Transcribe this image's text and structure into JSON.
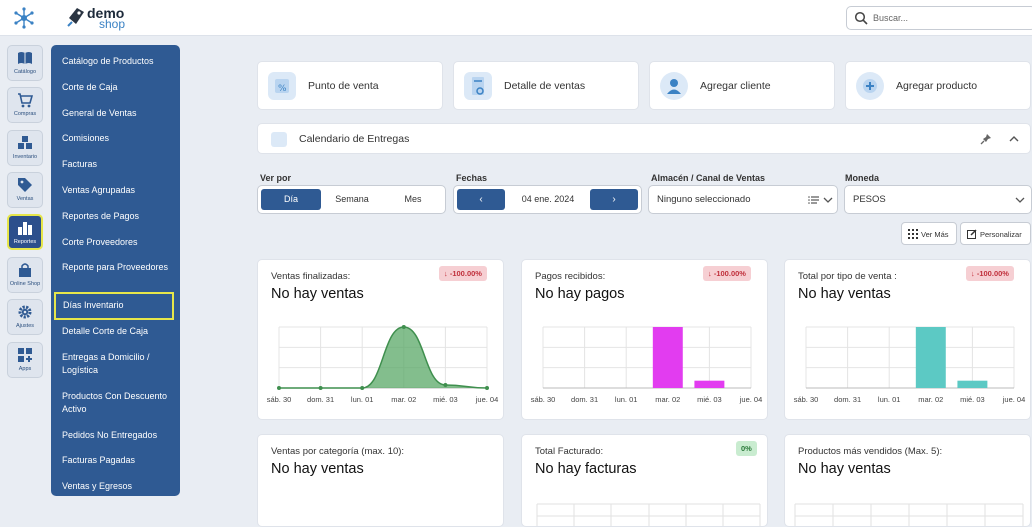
{
  "header": {
    "app_icon": "network-icon",
    "logo_line1": "demo",
    "logo_line2": "shop",
    "search_placeholder": "Buscar..."
  },
  "rail": [
    {
      "label": "Catálogo",
      "icon": "book-icon"
    },
    {
      "label": "Compras",
      "icon": "cart-icon"
    },
    {
      "label": "Inventario",
      "icon": "boxes-icon"
    },
    {
      "label": "Ventas",
      "icon": "tag-icon"
    },
    {
      "label": "Reportes",
      "icon": "bar-chart-icon",
      "active": true
    },
    {
      "label": "Online Shop",
      "icon": "shop-bag-icon"
    },
    {
      "label": "Ajustes",
      "icon": "gear-icon"
    },
    {
      "label": "Apps",
      "icon": "apps-icon"
    }
  ],
  "report_menu": [
    "Catálogo de Productos",
    "Corte de Caja",
    "General de Ventas",
    "Comisiones",
    "Facturas",
    "Ventas Agrupadas",
    "Reportes de Pagos",
    "Corte Proveedores",
    "Reporte para Proveedores",
    "Días Inventario",
    "Detalle Corte de Caja",
    "Entregas a Domicilio / Logística",
    "Productos Con Descuento Activo",
    "Pedidos No Entregados",
    "Facturas Pagadas",
    "Ventas y Egresos"
  ],
  "quick_actions": [
    "Punto de venta",
    "Detalle de ventas",
    "Agregar cliente",
    "Agregar producto"
  ],
  "calendar": {
    "title": "Calendario de Entregas"
  },
  "filters": {
    "ver_por": {
      "label": "Ver por",
      "options": [
        "Día",
        "Semana",
        "Mes"
      ],
      "selected": "Día"
    },
    "fechas": {
      "label": "Fechas",
      "value": "04 ene. 2024",
      "prev": "‹",
      "next": "›"
    },
    "almacen": {
      "label": "Almacén / Canal de Ventas",
      "value": "Ninguno seleccionado"
    },
    "moneda": {
      "label": "Moneda",
      "value": "PESOS"
    }
  },
  "buttons": {
    "ver_mas": "Ver Más",
    "personalizar": "Personalizar"
  },
  "cards": [
    {
      "title": "Ventas finalizadas:",
      "value": "No hay ventas",
      "badge": "-100.00%",
      "badge_arrow": "↓"
    },
    {
      "title": "Pagos recibidos:",
      "value": "No hay pagos",
      "badge": "-100.00%",
      "badge_arrow": "↓"
    },
    {
      "title": "Total por tipo de venta :",
      "value": "No hay ventas",
      "badge": "-100.00%",
      "badge_arrow": "↓"
    },
    {
      "title": "Ventas por categoría (max. 10):",
      "value": "No hay ventas"
    },
    {
      "title": "Total Facturado:",
      "value": "No hay facturas",
      "badge": "0%"
    },
    {
      "title": "Productos más vendidos (Max. 5):",
      "value": "No hay ventas"
    }
  ],
  "chart_data": [
    {
      "type": "area",
      "categories": [
        "sáb. 30",
        "dom. 31",
        "lun. 01",
        "mar. 02",
        "mié. 03",
        "jue. 04"
      ],
      "values": [
        0,
        0,
        0,
        1,
        0.05,
        0
      ],
      "ylim": [
        0,
        1
      ],
      "color": "#5aa867",
      "grid": true
    },
    {
      "type": "bar",
      "categories": [
        "sáb. 30",
        "dom. 31",
        "lun. 01",
        "mar. 02",
        "mié. 03",
        "jue. 04"
      ],
      "values": [
        0,
        0,
        0,
        1,
        0.12,
        0
      ],
      "ylim": [
        0,
        1
      ],
      "color": "#e23cf0",
      "grid": true
    },
    {
      "type": "bar",
      "categories": [
        "sáb. 30",
        "dom. 31",
        "lun. 01",
        "mar. 02",
        "mié. 03",
        "jue. 04"
      ],
      "values": [
        0,
        0,
        0,
        1,
        0.12,
        0
      ],
      "ylim": [
        0,
        1
      ],
      "color": "#5cc9c4",
      "grid": true
    }
  ]
}
